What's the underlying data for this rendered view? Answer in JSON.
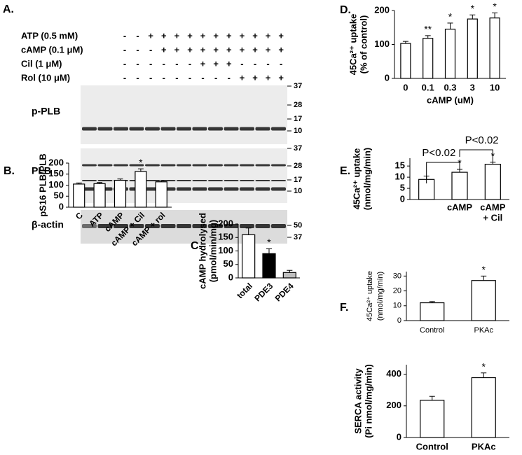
{
  "blot": {
    "label": "A.",
    "treatments": [
      {
        "name": "ATP (0.5 mM)",
        "signs": [
          "-",
          "-",
          "+",
          "+",
          "+",
          "+",
          "+",
          "+",
          "+",
          "+",
          "+",
          "+",
          "+"
        ]
      },
      {
        "name": "cAMP (0.1 μM)",
        "signs": [
          "-",
          "-",
          "-",
          "+",
          "+",
          "+",
          "+",
          "+",
          "+",
          "+",
          "+",
          "+",
          "+"
        ]
      },
      {
        "name": "Cil (1 μM)",
        "signs": [
          "-",
          "-",
          "-",
          "-",
          "-",
          "-",
          "+",
          "+",
          "+",
          "-",
          "-",
          "-",
          "-"
        ]
      },
      {
        "name": "Rol (10 μM)",
        "signs": [
          "-",
          "-",
          "-",
          "-",
          "-",
          "-",
          "-",
          "-",
          "-",
          "+",
          "+",
          "+",
          "+"
        ]
      }
    ],
    "panels": [
      {
        "name": "p-PLB",
        "markers": [
          37,
          28,
          17,
          10
        ]
      },
      {
        "name": "PLB",
        "markers": [
          37,
          28,
          17,
          10
        ]
      },
      {
        "name": "β-actin",
        "markers": [
          50,
          37
        ]
      }
    ]
  },
  "chart_data": [
    {
      "type": "bar",
      "label": "B.",
      "ylabel": [
        "pS16 PLB/PLB"
      ],
      "categories": [
        "C",
        "ATP",
        "cAMP",
        "cAMP + Cil",
        "cAMP + rol"
      ],
      "values": [
        105,
        107,
        122,
        162,
        115
      ],
      "errors": [
        5,
        5,
        6,
        12,
        5
      ],
      "stars": [
        null,
        null,
        null,
        "*",
        null
      ],
      "color": "#ffffff",
      "ylim": [
        0,
        200
      ],
      "yticks": [
        0,
        50,
        100,
        150,
        200
      ]
    },
    {
      "type": "bar",
      "label": "C.",
      "ylabel": [
        "cAMP hydrolysed",
        "(pmol/min/mg)"
      ],
      "categories": [
        "total",
        "PDE3",
        "PDE4"
      ],
      "values": [
        160,
        90,
        20
      ],
      "errors": [
        25,
        18,
        8
      ],
      "stars": [
        null,
        "*",
        null
      ],
      "colors": [
        "#ffffff",
        "#000000",
        "#bfbfbf"
      ],
      "ylim": [
        0,
        200
      ],
      "yticks": [
        0,
        50,
        100,
        150,
        200
      ]
    },
    {
      "type": "bar",
      "label": "D.",
      "ylabel": [
        "45Ca²⁺ uptake",
        "(% of control)"
      ],
      "xlabel": "cAMP (uM)",
      "categories": [
        "0",
        "0.1",
        "0.3",
        "3",
        "10"
      ],
      "values": [
        103,
        118,
        145,
        175,
        178
      ],
      "errors": [
        6,
        8,
        18,
        12,
        15
      ],
      "stars": [
        null,
        "**",
        "*",
        "*",
        "*"
      ],
      "color": "#ffffff",
      "ylim": [
        0,
        200
      ],
      "yticks": [
        0,
        100,
        200
      ]
    },
    {
      "type": "bar",
      "label": "E.",
      "ylabel": [
        "45Ca²⁺ uptake",
        "(nmol/mg/min)"
      ],
      "categories": [
        null,
        [
          "cAMP"
        ],
        [
          "cAMP",
          "+ Cil"
        ]
      ],
      "values": [
        9,
        12.2,
        15.8
      ],
      "errors": [
        1.5,
        1.3,
        0.9
      ],
      "stars": [
        null,
        "*",
        "*"
      ],
      "annotations": [
        "P<0.02",
        "P<0.02"
      ],
      "color": "#ffffff",
      "ylim": [
        0,
        18.5
      ],
      "yticks": [
        0,
        5,
        10,
        15
      ]
    },
    {
      "type": "bar",
      "label": "F.",
      "ylabel": [
        "45Ca²⁺ uptake",
        "(nmol/mg/min)"
      ],
      "categories": [
        "Control",
        "PKAc"
      ],
      "values": [
        12,
        27
      ],
      "errors": [
        0.8,
        3
      ],
      "stars": [
        null,
        "*"
      ],
      "color": "#ffffff",
      "ylim": [
        0,
        33
      ],
      "yticks": [
        0,
        10,
        20,
        30
      ]
    },
    {
      "type": "bar",
      "ylabel": [
        "SERCA activity",
        "(Pi nmol/mg/min)"
      ],
      "categories": [
        "Control",
        "PKAc"
      ],
      "values": [
        235,
        378
      ],
      "errors": [
        25,
        30
      ],
      "stars": [
        null,
        "*"
      ],
      "color": "#ffffff",
      "ylim": [
        0,
        460
      ],
      "yticks": [
        0,
        200,
        400
      ]
    }
  ]
}
